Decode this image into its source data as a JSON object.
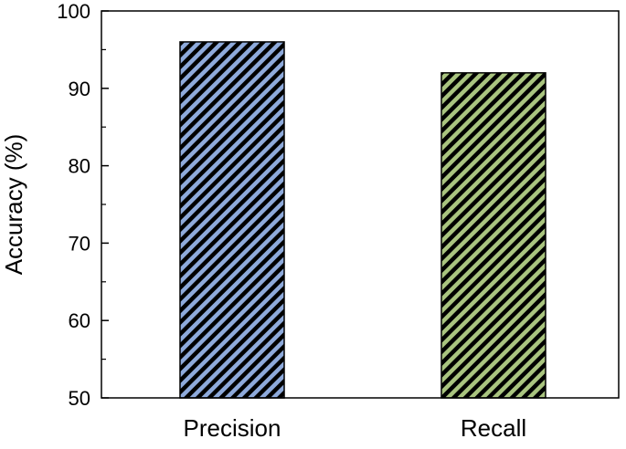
{
  "chart_data": {
    "type": "bar",
    "title": "",
    "xlabel": "",
    "ylabel": "Accuracy (%)",
    "categories": [
      "Precision",
      "Recall"
    ],
    "values": [
      96,
      92
    ],
    "ylim": [
      50,
      100
    ],
    "yticks": [
      50,
      60,
      70,
      80,
      90,
      100
    ],
    "grid": false,
    "legend": "none",
    "bar_colors": [
      "#8EAADB",
      "#A9C47F"
    ],
    "hatch": "diagonal",
    "hatch_color": "#000000"
  }
}
